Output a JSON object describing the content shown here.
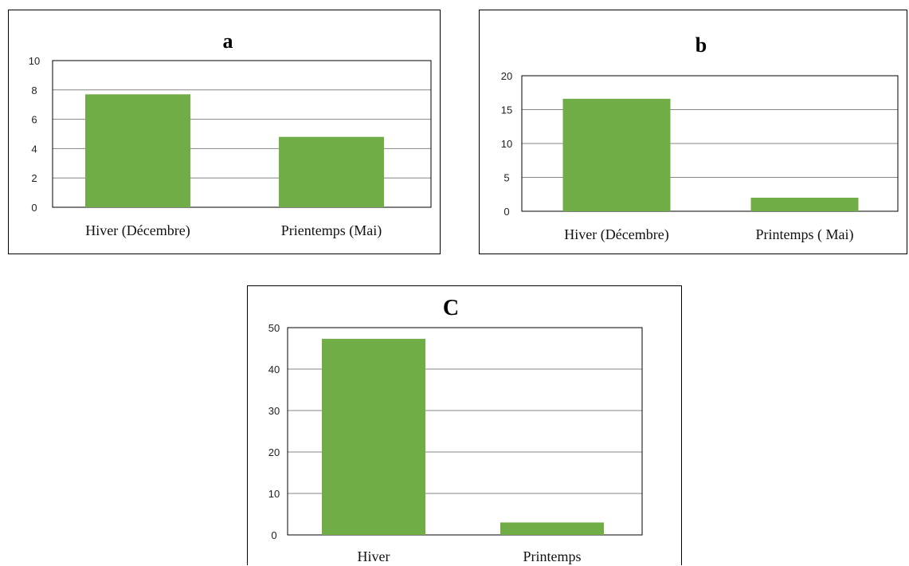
{
  "colors": {
    "bar": "#70ad47",
    "grid": "#868686",
    "frame": "#000000"
  },
  "chart_data": [
    {
      "type": "bar",
      "title": "a",
      "categories": [
        "Hiver (Décembre)",
        "Prientemps (Mai)"
      ],
      "values": [
        7.7,
        4.8
      ],
      "ylim": [
        0,
        10
      ],
      "yticks": [
        0,
        2,
        4,
        6,
        8,
        10
      ],
      "grid": true,
      "xlabel": "",
      "ylabel": ""
    },
    {
      "type": "bar",
      "title": "b",
      "categories": [
        "Hiver (Décembre)",
        "Printemps ( Mai)"
      ],
      "values": [
        16.6,
        2.0
      ],
      "ylim": [
        0,
        20
      ],
      "yticks": [
        0,
        5,
        10,
        15,
        20
      ],
      "grid": true,
      "xlabel": "",
      "ylabel": ""
    },
    {
      "type": "bar",
      "title": "C",
      "categories": [
        "Hiver",
        "Printemps"
      ],
      "values": [
        47.3,
        3.0
      ],
      "ylim": [
        0,
        50
      ],
      "yticks": [
        0,
        10,
        20,
        30,
        40,
        50
      ],
      "grid": true,
      "xlabel": "",
      "ylabel": ""
    }
  ]
}
